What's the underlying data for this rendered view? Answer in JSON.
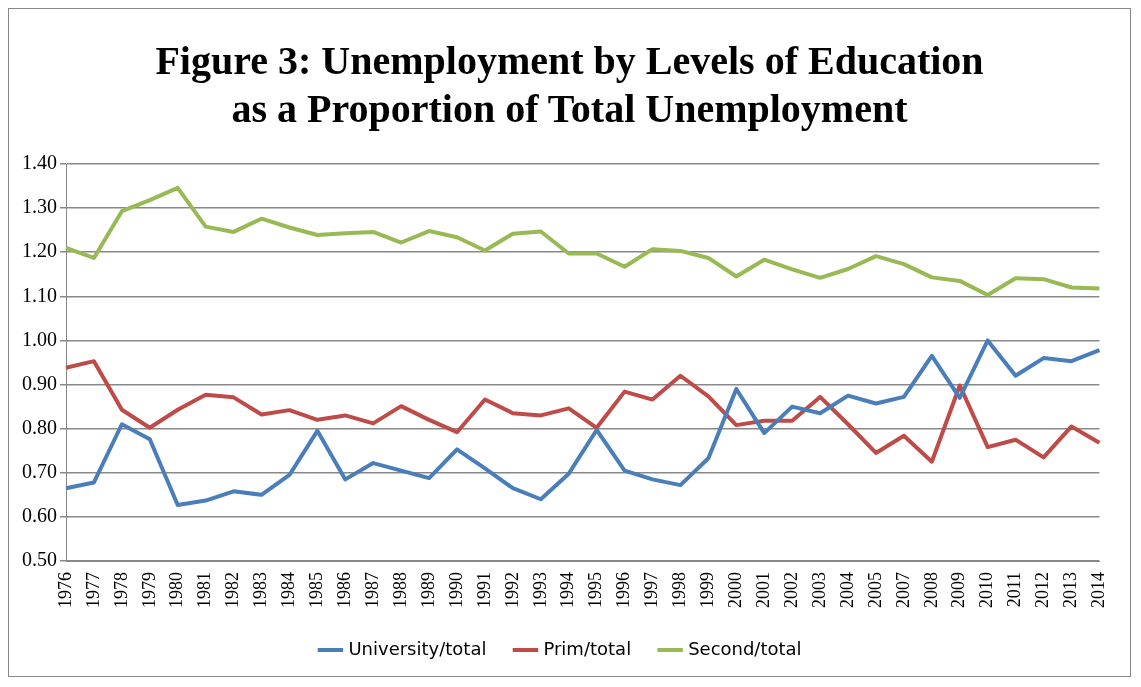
{
  "chart_data": {
    "type": "line",
    "title": "Figure 3: Unemployment by Levels of Education as a Proportion of Total Unemployment",
    "categories": [
      "1976",
      "1977",
      "1978",
      "1979",
      "1980",
      "1981",
      "1982",
      "1983",
      "1984",
      "1985",
      "1986",
      "1987",
      "1988",
      "1989",
      "1990",
      "1991",
      "1992",
      "1993",
      "1994",
      "1995",
      "1996",
      "1997",
      "1998",
      "1999",
      "2000",
      "2001",
      "2002",
      "2003",
      "2004",
      "2005",
      "2007",
      "2008",
      "2009",
      "2010",
      "2011",
      "2012",
      "2013",
      "2014"
    ],
    "series": [
      {
        "name": "University/total",
        "color": "#4a7ebb",
        "values": [
          0.665,
          0.678,
          0.81,
          0.776,
          0.627,
          0.637,
          0.658,
          0.65,
          0.695,
          0.795,
          0.685,
          0.722,
          0.705,
          0.688,
          0.753,
          0.71,
          0.665,
          0.64,
          0.698,
          0.797,
          0.705,
          0.685,
          0.672,
          0.733,
          0.89,
          0.79,
          0.85,
          0.835,
          0.875,
          0.857,
          0.872,
          0.965,
          0.87,
          1.0,
          0.92,
          0.96,
          0.953,
          0.978
        ]
      },
      {
        "name": "Prim/total",
        "color": "#be4b48",
        "values": [
          0.938,
          0.953,
          0.843,
          0.802,
          0.843,
          0.877,
          0.871,
          0.832,
          0.842,
          0.82,
          0.83,
          0.812,
          0.851,
          0.82,
          0.792,
          0.866,
          0.835,
          0.83,
          0.846,
          0.802,
          0.884,
          0.866,
          0.92,
          0.873,
          0.808,
          0.818,
          0.818,
          0.872,
          0.81,
          0.745,
          0.784,
          0.725,
          0.898,
          0.758,
          0.775,
          0.735,
          0.805,
          0.768
        ]
      },
      {
        "name": "Second/total",
        "color": "#98b954",
        "values": [
          1.21,
          1.187,
          1.293,
          1.318,
          1.346,
          1.258,
          1.246,
          1.276,
          1.256,
          1.239,
          1.243,
          1.246,
          1.222,
          1.248,
          1.234,
          1.204,
          1.242,
          1.247,
          1.197,
          1.197,
          1.167,
          1.207,
          1.203,
          1.187,
          1.145,
          1.183,
          1.161,
          1.142,
          1.162,
          1.191,
          1.173,
          1.143,
          1.135,
          1.103,
          1.141,
          1.139,
          1.12,
          1.118
        ]
      }
    ],
    "ylim": [
      0.5,
      1.4
    ],
    "yticks": [
      {
        "value": 0.5,
        "label": "0.50"
      },
      {
        "value": 0.6,
        "label": "0.60"
      },
      {
        "value": 0.7,
        "label": "0.70"
      },
      {
        "value": 0.8,
        "label": "0.80"
      },
      {
        "value": 0.9,
        "label": "0.90"
      },
      {
        "value": 1.0,
        "label": "1.00"
      },
      {
        "value": 1.1,
        "label": "1.10"
      },
      {
        "value": 1.2,
        "label": "1.20"
      },
      {
        "value": 1.3,
        "label": "1.30"
      },
      {
        "value": 1.4,
        "label": "1.40"
      }
    ],
    "grid": "y",
    "legend": "bottom",
    "marker": "none",
    "line_style": "solid"
  }
}
